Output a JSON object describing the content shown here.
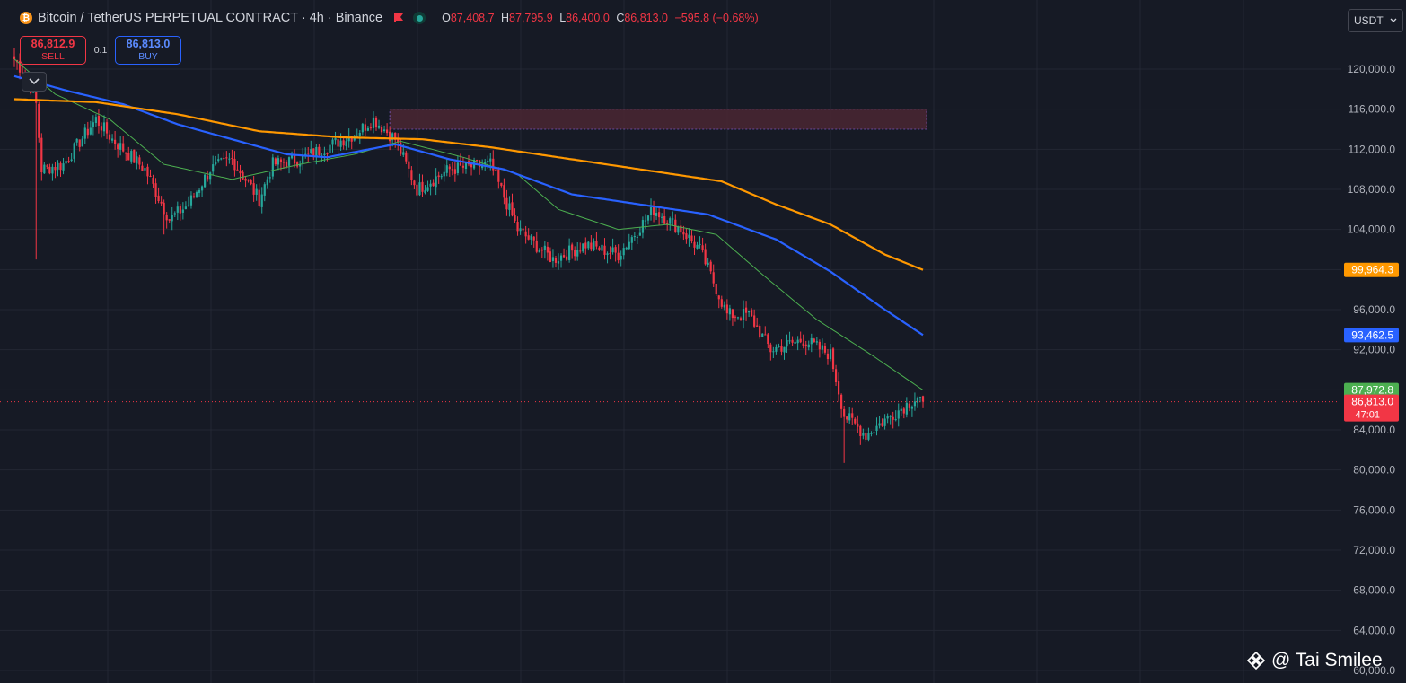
{
  "header": {
    "coin_symbol": "₿",
    "title": "Bitcoin / TetherUS PERPETUAL CONTRACT · 4h · Binance",
    "ohlc": {
      "o_label": "O",
      "o": "87,408.7",
      "h_label": "H",
      "h": "87,795.9",
      "l_label": "L",
      "l": "86,400.0",
      "c_label": "C",
      "c": "86,813.0",
      "change": "−595.8 (−0.68%)"
    }
  },
  "trade": {
    "sell_price": "86,812.9",
    "sell_label": "SELL",
    "spread": "0.1",
    "buy_price": "86,813.0",
    "buy_label": "BUY"
  },
  "currency": {
    "selected": "USDT"
  },
  "watermark": {
    "text": "@ Tai Smilee"
  },
  "colors": {
    "background": "#161a25",
    "grid": "#232733",
    "up": "#26a69a",
    "down": "#f23645",
    "ma_fast": "#4caf50",
    "ma_mid": "#2962ff",
    "ma_slow": "#ff9800",
    "zone": "#4a2732"
  },
  "chart_data": {
    "type": "candlestick",
    "interval": "4h",
    "ylim": [
      59000,
      125500
    ],
    "y_ticks": [
      "120,000.0",
      "116,000.0",
      "112,000.0",
      "108,000.0",
      "104,000.0",
      "100,000.0",
      "96,000.0",
      "92,000.0",
      "88,000.0",
      "84,000.0",
      "80,000.0",
      "76,000.0",
      "72,000.0",
      "68,000.0",
      "64,000.0",
      "60,000.0"
    ],
    "anchors": [
      {
        "i": 0,
        "v": 121000
      },
      {
        "i": 5,
        "v": 119000
      },
      {
        "i": 8,
        "v": 116500
      },
      {
        "i": 10,
        "v": 110000
      },
      {
        "i": 18,
        "v": 110500
      },
      {
        "i": 30,
        "v": 115000
      },
      {
        "i": 36,
        "v": 113000
      },
      {
        "i": 48,
        "v": 110000
      },
      {
        "i": 57,
        "v": 105000
      },
      {
        "i": 64,
        "v": 106500
      },
      {
        "i": 72,
        "v": 110000
      },
      {
        "i": 80,
        "v": 111000
      },
      {
        "i": 90,
        "v": 107000
      },
      {
        "i": 95,
        "v": 110500
      },
      {
        "i": 105,
        "v": 111000
      },
      {
        "i": 125,
        "v": 113500
      },
      {
        "i": 132,
        "v": 115000
      },
      {
        "i": 140,
        "v": 113000
      },
      {
        "i": 148,
        "v": 108000
      },
      {
        "i": 160,
        "v": 110000
      },
      {
        "i": 175,
        "v": 110500
      },
      {
        "i": 185,
        "v": 104000
      },
      {
        "i": 198,
        "v": 101000
      },
      {
        "i": 210,
        "v": 102500
      },
      {
        "i": 222,
        "v": 101500
      },
      {
        "i": 235,
        "v": 106000
      },
      {
        "i": 245,
        "v": 104000
      },
      {
        "i": 252,
        "v": 102000
      },
      {
        "i": 262,
        "v": 95500
      },
      {
        "i": 270,
        "v": 95500
      },
      {
        "i": 278,
        "v": 92000
      },
      {
        "i": 290,
        "v": 93000
      },
      {
        "i": 300,
        "v": 91500
      },
      {
        "i": 305,
        "v": 85500
      },
      {
        "i": 313,
        "v": 83500
      },
      {
        "i": 320,
        "v": 85000
      },
      {
        "i": 332,
        "v": 87300
      },
      {
        "i": 334,
        "v": 86813
      }
    ],
    "candle_count": 335,
    "wicks": [
      {
        "i": 8,
        "low": 101000
      },
      {
        "i": 55,
        "low": 103500
      },
      {
        "i": 305,
        "low": 80700
      }
    ],
    "series": [
      {
        "role": "ma_fast",
        "anchors": [
          {
            "i": 0,
            "v": 121000
          },
          {
            "i": 15,
            "v": 117500
          },
          {
            "i": 35,
            "v": 115000
          },
          {
            "i": 55,
            "v": 110500
          },
          {
            "i": 80,
            "v": 109000
          },
          {
            "i": 105,
            "v": 110500
          },
          {
            "i": 125,
            "v": 111500
          },
          {
            "i": 142,
            "v": 112800
          },
          {
            "i": 165,
            "v": 111200
          },
          {
            "i": 185,
            "v": 109500
          },
          {
            "i": 200,
            "v": 106000
          },
          {
            "i": 222,
            "v": 104000
          },
          {
            "i": 240,
            "v": 104500
          },
          {
            "i": 258,
            "v": 103500
          },
          {
            "i": 275,
            "v": 99500
          },
          {
            "i": 295,
            "v": 95000
          },
          {
            "i": 315,
            "v": 91500
          },
          {
            "i": 334,
            "v": 87972.8
          }
        ]
      },
      {
        "role": "ma_mid",
        "anchors": [
          {
            "i": 0,
            "v": 119300
          },
          {
            "i": 20,
            "v": 117800
          },
          {
            "i": 40,
            "v": 116500
          },
          {
            "i": 60,
            "v": 114500
          },
          {
            "i": 80,
            "v": 113000
          },
          {
            "i": 100,
            "v": 111500
          },
          {
            "i": 115,
            "v": 111200
          },
          {
            "i": 140,
            "v": 112500
          },
          {
            "i": 160,
            "v": 111000
          },
          {
            "i": 180,
            "v": 110000
          },
          {
            "i": 205,
            "v": 107500
          },
          {
            "i": 230,
            "v": 106500
          },
          {
            "i": 255,
            "v": 105500
          },
          {
            "i": 280,
            "v": 103000
          },
          {
            "i": 300,
            "v": 99800
          },
          {
            "i": 320,
            "v": 96000
          },
          {
            "i": 334,
            "v": 93462.5
          }
        ]
      },
      {
        "role": "ma_slow",
        "anchors": [
          {
            "i": 0,
            "v": 117000
          },
          {
            "i": 30,
            "v": 116700
          },
          {
            "i": 60,
            "v": 115500
          },
          {
            "i": 90,
            "v": 113800
          },
          {
            "i": 120,
            "v": 113200
          },
          {
            "i": 150,
            "v": 113000
          },
          {
            "i": 175,
            "v": 112200
          },
          {
            "i": 205,
            "v": 111000
          },
          {
            "i": 235,
            "v": 109800
          },
          {
            "i": 260,
            "v": 108800
          },
          {
            "i": 280,
            "v": 106500
          },
          {
            "i": 300,
            "v": 104500
          },
          {
            "i": 320,
            "v": 101500
          },
          {
            "i": 334,
            "v": 99964.3
          }
        ]
      }
    ],
    "zone": {
      "i_start": 138,
      "i_end": 334,
      "top": 116000,
      "bottom": 114000
    },
    "price_labels": [
      {
        "text": "99,964.3",
        "value": 99964.3,
        "color": "#ff9800"
      },
      {
        "text": "93,462.5",
        "value": 93462.5,
        "color": "#2962ff"
      },
      {
        "text": "87,972.8",
        "value": 87972.8,
        "color": "#4caf50"
      },
      {
        "text": "86,813.0",
        "value": 86813.0,
        "color": "#f23645"
      }
    ],
    "countdown": "47:01",
    "last_price": 86813.0
  }
}
